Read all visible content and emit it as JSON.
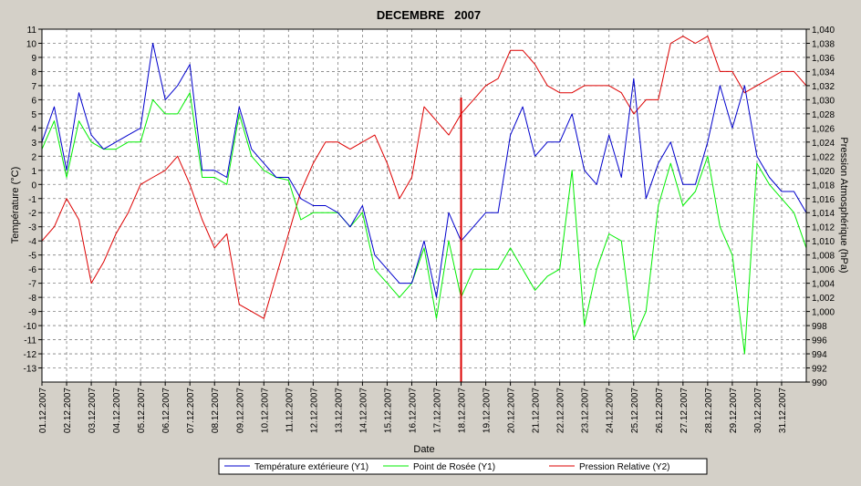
{
  "chart_data": {
    "type": "line",
    "title": "DECEMBRE   2007",
    "xlabel": "Date",
    "ylabel": "Température (°C)",
    "y2label": "Pression Atmosphérique (hPa)",
    "ylim": [
      -14,
      11
    ],
    "y2lim": [
      990,
      1040
    ],
    "grid": true,
    "legend_position": "bottom-center",
    "colors": {
      "background": "#d4d0c8",
      "plot_bg": "#ffffff",
      "grid": "#808080"
    },
    "xlim": [
      "01.12.2007",
      "01.01.2008"
    ],
    "x_ticks": [
      "01.12.2007",
      "02.12.2007",
      "03.12.2007",
      "04.12.2007",
      "05.12.2007",
      "06.12.2007",
      "07.12.2007",
      "08.12.2007",
      "09.12.2007",
      "10.12.2007",
      "11.12.2007",
      "12.12.2007",
      "13.12.2007",
      "14.12.2007",
      "15.12.2007",
      "16.12.2007",
      "17.12.2007",
      "18.12.2007",
      "19.12.2007",
      "20.12.2007",
      "21.12.2007",
      "22.12.2007",
      "23.12.2007",
      "24.12.2007",
      "25.12.2007",
      "26.12.2007",
      "27.12.2007",
      "28.12.2007",
      "29.12.2007",
      "30.12.2007",
      "31.12.2007"
    ],
    "y_ticks": [
      11,
      10,
      9,
      8,
      7,
      6,
      5,
      4,
      3,
      2,
      1,
      0,
      -1,
      -2,
      -3,
      -4,
      -5,
      -6,
      -7,
      -8,
      -9,
      -10,
      -11,
      -12,
      -13
    ],
    "y2_ticks": [
      "1,040",
      "1,038",
      "1,036",
      "1,034",
      "1,032",
      "1,030",
      "1,028",
      "1,026",
      "1,024",
      "1,022",
      "1,020",
      "1,018",
      "1,016",
      "1,014",
      "1,012",
      "1,010",
      "1,008",
      "1,006",
      "1,004",
      "1,002",
      "1,000",
      "998",
      "996",
      "994",
      "992",
      "990"
    ],
    "series": [
      {
        "name": "Température extérieure (Y1)",
        "axis": "y1",
        "color": "#0000cc",
        "x": [
          "01.12.2007 00:00",
          "01.12.2007 12:00",
          "02.12.2007 00:00",
          "02.12.2007 12:00",
          "03.12.2007 00:00",
          "03.12.2007 12:00",
          "04.12.2007 00:00",
          "04.12.2007 12:00",
          "05.12.2007 00:00",
          "05.12.2007 12:00",
          "06.12.2007 00:00",
          "06.12.2007 12:00",
          "07.12.2007 00:00",
          "07.12.2007 12:00",
          "08.12.2007 00:00",
          "08.12.2007 12:00",
          "09.12.2007 00:00",
          "09.12.2007 12:00",
          "10.12.2007 00:00",
          "10.12.2007 12:00",
          "11.12.2007 00:00",
          "11.12.2007 12:00",
          "12.12.2007 00:00",
          "12.12.2007 12:00",
          "13.12.2007 00:00",
          "13.12.2007 12:00",
          "14.12.2007 00:00",
          "14.12.2007 12:00",
          "15.12.2007 00:00",
          "15.12.2007 12:00",
          "16.12.2007 00:00",
          "16.12.2007 12:00",
          "17.12.2007 00:00",
          "17.12.2007 12:00",
          "18.12.2007 00:00",
          "18.12.2007 12:00",
          "19.12.2007 00:00",
          "19.12.2007 12:00",
          "20.12.2007 00:00",
          "20.12.2007 12:00",
          "21.12.2007 00:00",
          "21.12.2007 12:00",
          "22.12.2007 00:00",
          "22.12.2007 12:00",
          "23.12.2007 00:00",
          "23.12.2007 12:00",
          "24.12.2007 00:00",
          "24.12.2007 12:00",
          "25.12.2007 00:00",
          "25.12.2007 12:00",
          "26.12.2007 00:00",
          "26.12.2007 12:00",
          "27.12.2007 00:00",
          "27.12.2007 12:00",
          "28.12.2007 00:00",
          "28.12.2007 12:00",
          "29.12.2007 00:00",
          "29.12.2007 12:00",
          "30.12.2007 00:00",
          "30.12.2007 12:00",
          "31.12.2007 00:00",
          "31.12.2007 12:00",
          "01.01.2008 00:00"
        ],
        "values": [
          3,
          5.5,
          1,
          6.5,
          3.5,
          2.5,
          3,
          3.5,
          4,
          10,
          6,
          7,
          8.5,
          1,
          1,
          0.5,
          5.5,
          2.5,
          1.5,
          0.5,
          0.5,
          -1,
          -1.5,
          -1.5,
          -2,
          -3,
          -1.5,
          -5,
          -6,
          -7,
          -7,
          -4,
          -8,
          -2,
          -4,
          -3,
          -2,
          -2,
          3.5,
          5.5,
          2,
          3,
          3,
          5,
          1,
          0,
          3.5,
          0.5,
          7.5,
          -1,
          1.5,
          3,
          0,
          0,
          3,
          7,
          4,
          7,
          2,
          0.5,
          -0.5,
          -0.5,
          -2
        ]
      },
      {
        "name": "Point de Rosée (Y1)",
        "axis": "y1",
        "color": "#00ee00",
        "x": [
          "01.12.2007 00:00",
          "01.12.2007 12:00",
          "02.12.2007 00:00",
          "02.12.2007 12:00",
          "03.12.2007 00:00",
          "03.12.2007 12:00",
          "04.12.2007 00:00",
          "04.12.2007 12:00",
          "05.12.2007 00:00",
          "05.12.2007 12:00",
          "06.12.2007 00:00",
          "06.12.2007 12:00",
          "07.12.2007 00:00",
          "07.12.2007 12:00",
          "08.12.2007 00:00",
          "08.12.2007 12:00",
          "09.12.2007 00:00",
          "09.12.2007 12:00",
          "10.12.2007 00:00",
          "10.12.2007 12:00",
          "11.12.2007 00:00",
          "11.12.2007 12:00",
          "12.12.2007 00:00",
          "12.12.2007 12:00",
          "13.12.2007 00:00",
          "13.12.2007 12:00",
          "14.12.2007 00:00",
          "14.12.2007 12:00",
          "15.12.2007 00:00",
          "15.12.2007 12:00",
          "16.12.2007 00:00",
          "16.12.2007 12:00",
          "17.12.2007 00:00",
          "17.12.2007 12:00",
          "18.12.2007 00:00",
          "18.12.2007 12:00",
          "19.12.2007 00:00",
          "19.12.2007 12:00",
          "20.12.2007 00:00",
          "20.12.2007 12:00",
          "21.12.2007 00:00",
          "21.12.2007 12:00",
          "22.12.2007 00:00",
          "22.12.2007 12:00",
          "23.12.2007 00:00",
          "23.12.2007 12:00",
          "24.12.2007 00:00",
          "24.12.2007 12:00",
          "25.12.2007 00:00",
          "25.12.2007 12:00",
          "26.12.2007 00:00",
          "26.12.2007 12:00",
          "27.12.2007 00:00",
          "27.12.2007 12:00",
          "28.12.2007 00:00",
          "28.12.2007 12:00",
          "29.12.2007 00:00",
          "29.12.2007 12:00",
          "30.12.2007 00:00",
          "30.12.2007 12:00",
          "31.12.2007 00:00",
          "31.12.2007 12:00",
          "01.01.2008 00:00"
        ],
        "values": [
          2.5,
          4.5,
          0.5,
          4.5,
          3,
          2.5,
          2.5,
          3,
          3,
          6,
          5,
          5,
          6.5,
          0.5,
          0.5,
          0,
          5,
          2,
          1,
          0.5,
          0.3,
          -2.5,
          -2,
          -2,
          -2,
          -3,
          -2,
          -6,
          -7,
          -8,
          -7,
          -4.5,
          -9.5,
          -4,
          -8,
          -6,
          -6,
          -6,
          -4.5,
          -6,
          -7.5,
          -6.5,
          -6,
          1,
          -10,
          -6,
          -3.5,
          -4,
          -11,
          -9,
          -1.5,
          1.5,
          -1.5,
          -0.5,
          2,
          -3,
          -5,
          -12,
          1.5,
          0,
          -1,
          -2,
          -4.5
        ]
      },
      {
        "name": "Pression Relative (Y2)",
        "axis": "y2",
        "color": "#dd0000",
        "x": [
          "01.12.2007 00:00",
          "01.12.2007 12:00",
          "02.12.2007 00:00",
          "02.12.2007 12:00",
          "03.12.2007 00:00",
          "03.12.2007 12:00",
          "04.12.2007 00:00",
          "04.12.2007 12:00",
          "05.12.2007 00:00",
          "05.12.2007 12:00",
          "06.12.2007 00:00",
          "06.12.2007 12:00",
          "07.12.2007 00:00",
          "07.12.2007 12:00",
          "08.12.2007 00:00",
          "08.12.2007 12:00",
          "09.12.2007 00:00",
          "09.12.2007 12:00",
          "10.12.2007 00:00",
          "10.12.2007 12:00",
          "11.12.2007 00:00",
          "11.12.2007 12:00",
          "12.12.2007 00:00",
          "12.12.2007 12:00",
          "13.12.2007 00:00",
          "13.12.2007 12:00",
          "14.12.2007 00:00",
          "14.12.2007 12:00",
          "15.12.2007 00:00",
          "15.12.2007 12:00",
          "16.12.2007 00:00",
          "16.12.2007 12:00",
          "17.12.2007 00:00",
          "17.12.2007 12:00",
          "18.12.2007 00:00",
          "18.12.2007 12:00",
          "19.12.2007 00:00",
          "19.12.2007 12:00",
          "20.12.2007 00:00",
          "20.12.2007 12:00",
          "21.12.2007 00:00",
          "21.12.2007 12:00",
          "22.12.2007 00:00",
          "22.12.2007 12:00",
          "23.12.2007 00:00",
          "23.12.2007 12:00",
          "24.12.2007 00:00",
          "24.12.2007 12:00",
          "25.12.2007 00:00",
          "25.12.2007 12:00",
          "26.12.2007 00:00",
          "26.12.2007 12:00",
          "27.12.2007 00:00",
          "27.12.2007 12:00",
          "28.12.2007 00:00",
          "28.12.2007 12:00",
          "29.12.2007 00:00",
          "29.12.2007 12:00",
          "30.12.2007 00:00",
          "30.12.2007 12:00",
          "31.12.2007 00:00",
          "31.12.2007 12:00",
          "01.01.2008 00:00"
        ],
        "values": [
          1010,
          1012,
          1016,
          1013,
          1004,
          1007,
          1011,
          1014,
          1018,
          1019,
          1020,
          1022,
          1018,
          1013,
          1009,
          1011,
          1001,
          1000,
          999,
          1005,
          1011,
          1017,
          1021,
          1024,
          1024,
          1023,
          1024,
          1025,
          1021,
          1016,
          1019,
          1029,
          1027,
          1025,
          1028,
          1030,
          1032,
          1033,
          1037,
          1037,
          1035,
          1032,
          1031,
          1031,
          1032,
          1032,
          1032,
          1031,
          1028,
          1030,
          1030,
          1038,
          1039,
          1038,
          1039,
          1034,
          1034,
          1031,
          1032,
          1033,
          1034,
          1034,
          1032
        ]
      }
    ],
    "marker": {
      "x": "18.12.2007 00:00",
      "color": "#dd0000"
    }
  }
}
